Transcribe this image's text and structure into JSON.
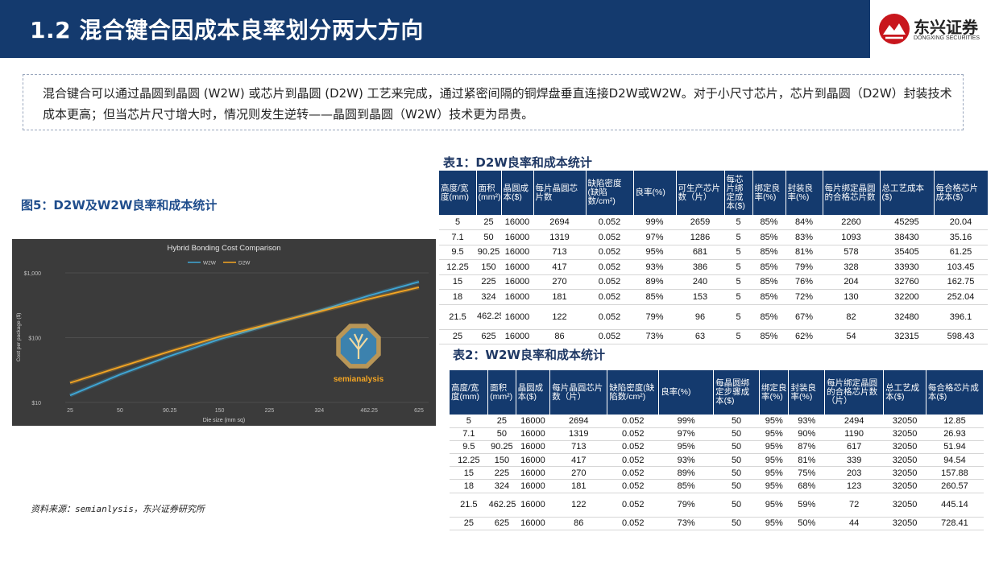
{
  "header": {
    "title": "1.2 混合键合因成本良率划分两大方向"
  },
  "logo": {
    "cn": "东兴证券",
    "en": "DONGXING SECURITIES"
  },
  "intro": {
    "text": "混合键合可以通过晶圆到晶圆 (W2W) 或芯片到晶圆 (D2W) 工艺来完成，通过紧密间隔的铜焊盘垂直连接D2W或W2W。对于小尺寸芯片，芯片到晶圆（D2W）封装技术成本更高；但当芯片尺寸增大时，情况则发生逆转——晶圆到晶圆（W2W）技术更为昂贵。"
  },
  "figure": {
    "title": "图5：D2W及W2W良率和成本统计",
    "source": "资料来源：semianlysis，东兴证券研究所",
    "watermark": "semianalysis"
  },
  "chart_data": {
    "type": "line",
    "title": "Hybrid Bonding Cost Comparison",
    "xlabel": "Die size (mm sq)",
    "ylabel": "Cost per package ($)",
    "categories": [
      "25",
      "50",
      "90.25",
      "150",
      "225",
      "324",
      "462.25",
      "625"
    ],
    "yscale": "log",
    "ylim": [
      10,
      1000
    ],
    "yticks": [
      {
        "value": 10,
        "label": "$10"
      },
      {
        "value": 100,
        "label": "$100"
      },
      {
        "value": 1000,
        "label": "$1,000"
      }
    ],
    "legend_position": "top-center",
    "background": "#3b3b3b",
    "series": [
      {
        "name": "W2W",
        "color": "#3fa7d6",
        "values": [
          12.85,
          26.93,
          51.94,
          94.54,
          157.88,
          260.57,
          445.14,
          728.41
        ]
      },
      {
        "name": "D2W",
        "color": "#f5a623",
        "values": [
          20.04,
          35.16,
          61.25,
          103.45,
          162.75,
          252.04,
          396.1,
          598.43
        ]
      }
    ]
  },
  "table1": {
    "title": "表1：D2W良率和成本统计",
    "headers": [
      "高度/宽度(mm)",
      "面积(mm²)",
      "晶圆成本($)",
      "每片晶圆芯片数",
      "缺陷密度(缺陷数/cm²)",
      "良率(%)",
      "可生产芯片数（片）",
      "每芯片绑定成本($)",
      "绑定良率(%)",
      "封装良率(%)",
      "每片绑定晶圆的合格芯片数",
      "总工艺成本($)",
      "每合格芯片成本($)"
    ],
    "rows": [
      [
        "5",
        "25",
        "16000",
        "2694",
        "0.052",
        "99%",
        "2659",
        "5",
        "85%",
        "84%",
        "2260",
        "45295",
        "20.04"
      ],
      [
        "7.1",
        "50",
        "16000",
        "1319",
        "0.052",
        "97%",
        "1286",
        "5",
        "85%",
        "83%",
        "1093",
        "38430",
        "35.16"
      ],
      [
        "9.5",
        "90.25",
        "16000",
        "713",
        "0.052",
        "95%",
        "681",
        "5",
        "85%",
        "81%",
        "578",
        "35405",
        "61.25"
      ],
      [
        "12.25",
        "150",
        "16000",
        "417",
        "0.052",
        "93%",
        "386",
        "5",
        "85%",
        "79%",
        "328",
        "33930",
        "103.45"
      ],
      [
        "15",
        "225",
        "16000",
        "270",
        "0.052",
        "89%",
        "240",
        "5",
        "85%",
        "76%",
        "204",
        "32760",
        "162.75"
      ],
      [
        "18",
        "324",
        "16000",
        "181",
        "0.052",
        "85%",
        "153",
        "5",
        "85%",
        "72%",
        "130",
        "32200",
        "252.04"
      ],
      [
        "21.5",
        "462.25",
        "16000",
        "122",
        "0.052",
        "79%",
        "96",
        "5",
        "85%",
        "67%",
        "82",
        "32480",
        "396.1"
      ],
      [
        "25",
        "625",
        "16000",
        "86",
        "0.052",
        "73%",
        "63",
        "5",
        "85%",
        "62%",
        "54",
        "32315",
        "598.43"
      ]
    ]
  },
  "table2": {
    "title": "表2：W2W良率和成本统计",
    "headers": [
      "高度/宽度(mm)",
      "面积(mm²)",
      "晶圆成本($)",
      "每片晶圆芯片数（片）",
      "缺陷密度(缺陷数/cm²)",
      "良率(%)",
      "每晶圆绑定步骤成本($)",
      "绑定良率(%)",
      "封装良率(%)",
      "每片绑定晶圆的合格芯片数（片）",
      "总工艺成本($)",
      "每合格芯片成本($)"
    ],
    "rows": [
      [
        "5",
        "25",
        "16000",
        "2694",
        "0.052",
        "99%",
        "50",
        "95%",
        "93%",
        "2494",
        "32050",
        "12.85"
      ],
      [
        "7.1",
        "50",
        "16000",
        "1319",
        "0.052",
        "97%",
        "50",
        "95%",
        "90%",
        "1190",
        "32050",
        "26.93"
      ],
      [
        "9.5",
        "90.25",
        "16000",
        "713",
        "0.052",
        "95%",
        "50",
        "95%",
        "87%",
        "617",
        "32050",
        "51.94"
      ],
      [
        "12.25",
        "150",
        "16000",
        "417",
        "0.052",
        "93%",
        "50",
        "95%",
        "81%",
        "339",
        "32050",
        "94.54"
      ],
      [
        "15",
        "225",
        "16000",
        "270",
        "0.052",
        "89%",
        "50",
        "95%",
        "75%",
        "203",
        "32050",
        "157.88"
      ],
      [
        "18",
        "324",
        "16000",
        "181",
        "0.052",
        "85%",
        "50",
        "95%",
        "68%",
        "123",
        "32050",
        "260.57"
      ],
      [
        "21.5",
        "462.25",
        "16000",
        "122",
        "0.052",
        "79%",
        "50",
        "95%",
        "59%",
        "72",
        "32050",
        "445.14"
      ],
      [
        "25",
        "625",
        "16000",
        "86",
        "0.052",
        "73%",
        "50",
        "95%",
        "50%",
        "44",
        "32050",
        "728.41"
      ]
    ]
  }
}
